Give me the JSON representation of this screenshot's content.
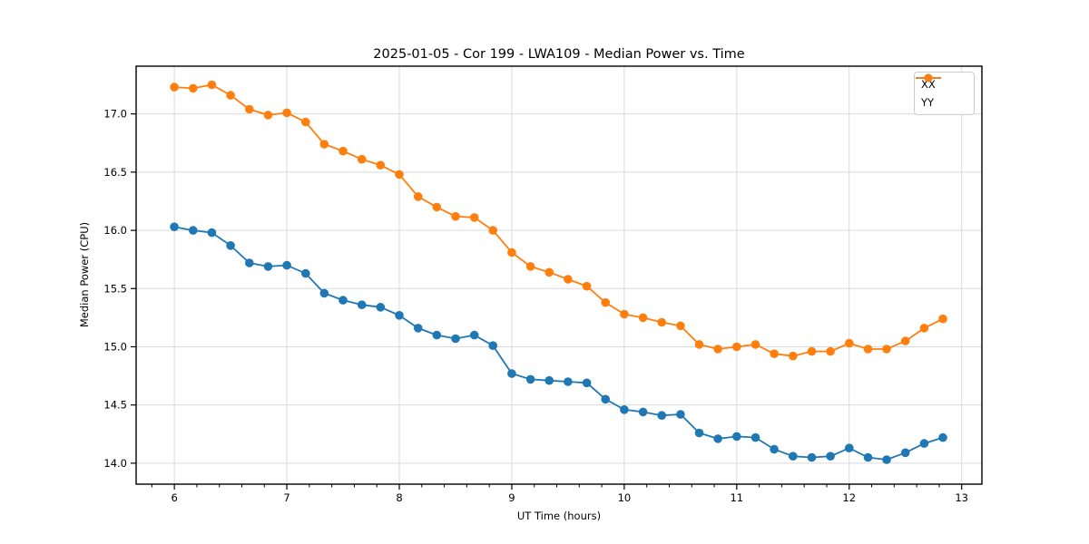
{
  "chart_data": {
    "type": "line",
    "title": "2025-01-05 - Cor 199 - LWA109 - Median Power vs. Time",
    "xlabel": "UT Time (hours)",
    "ylabel": "Median Power (CPU)",
    "xlim": [
      5.66,
      13.18
    ],
    "ylim": [
      13.82,
      17.41
    ],
    "xticks": [
      6,
      7,
      8,
      9,
      10,
      11,
      12,
      13
    ],
    "xtick_labels": [
      "6",
      "7",
      "8",
      "9",
      "10",
      "11",
      "12",
      "13"
    ],
    "x_minor_tick_step": 0.2,
    "yticks": [
      14.0,
      14.5,
      15.0,
      15.5,
      16.0,
      16.5,
      17.0
    ],
    "ytick_labels": [
      "14.0",
      "14.5",
      "15.0",
      "15.5",
      "16.0",
      "16.5",
      "17.0"
    ],
    "grid": true,
    "grid_color": "#d9d9d9",
    "legend_position": "upper right",
    "x": [
      6.0,
      6.167,
      6.333,
      6.5,
      6.667,
      6.833,
      7.0,
      7.167,
      7.333,
      7.5,
      7.667,
      7.833,
      8.0,
      8.167,
      8.333,
      8.5,
      8.667,
      8.833,
      9.0,
      9.167,
      9.333,
      9.5,
      9.667,
      9.833,
      10.0,
      10.167,
      10.333,
      10.5,
      10.667,
      10.833,
      11.0,
      11.167,
      11.333,
      11.5,
      11.667,
      11.833,
      12.0,
      12.167,
      12.333,
      12.5,
      12.667,
      12.833
    ],
    "series": [
      {
        "name": "XX",
        "color": "#1f77b4",
        "values": [
          16.03,
          16.0,
          15.98,
          15.87,
          15.72,
          15.69,
          15.7,
          15.63,
          15.46,
          15.4,
          15.36,
          15.34,
          15.27,
          15.16,
          15.1,
          15.07,
          15.1,
          15.01,
          14.77,
          14.72,
          14.71,
          14.7,
          14.69,
          14.55,
          14.46,
          14.44,
          14.41,
          14.42,
          14.26,
          14.21,
          14.23,
          14.22,
          14.12,
          14.06,
          14.05,
          14.06,
          14.13,
          14.05,
          14.03,
          14.09,
          14.17,
          14.22
        ]
      },
      {
        "name": "YY",
        "color": "#ff7f0e",
        "values": [
          17.23,
          17.22,
          17.25,
          17.16,
          17.04,
          16.99,
          17.01,
          16.93,
          16.74,
          16.68,
          16.61,
          16.56,
          16.48,
          16.29,
          16.2,
          16.12,
          16.11,
          16.0,
          15.81,
          15.69,
          15.64,
          15.58,
          15.52,
          15.38,
          15.28,
          15.25,
          15.21,
          15.18,
          15.02,
          14.98,
          15.0,
          15.02,
          14.94,
          14.92,
          14.96,
          14.96,
          15.03,
          14.98,
          14.98,
          15.05,
          15.16,
          15.24
        ]
      }
    ]
  }
}
